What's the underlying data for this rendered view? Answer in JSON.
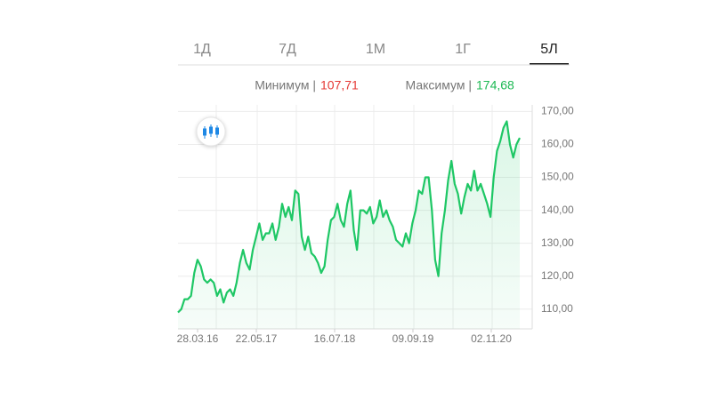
{
  "tabs": [
    "1Д",
    "7Д",
    "1М",
    "1Г",
    "5Л"
  ],
  "selected_tab": 4,
  "min_label": "Минимум |",
  "min_value": "107,71",
  "max_label": "Максимум |",
  "max_value": "174,68",
  "chart_data": {
    "type": "line",
    "color": "#1ec765",
    "grid": true,
    "ylim": [
      104,
      172
    ],
    "yticks": [
      {
        "value": 110,
        "label": "110,00"
      },
      {
        "value": 120,
        "label": "120,00"
      },
      {
        "value": 130,
        "label": "130,00"
      },
      {
        "value": 140,
        "label": "140,00"
      },
      {
        "value": 150,
        "label": "150,00"
      },
      {
        "value": 160,
        "label": "160,00"
      },
      {
        "value": 170,
        "label": "170,00"
      }
    ],
    "xticks": [
      "28.03.16",
      "22.05.17",
      "16.07.18",
      "09.09.19",
      "02.11.20"
    ],
    "values": [
      109,
      110,
      113,
      113,
      114,
      121,
      125,
      123,
      119,
      118,
      119,
      118,
      114,
      116,
      112,
      115,
      116,
      114,
      118,
      124,
      128,
      124,
      122,
      128,
      132,
      136,
      131,
      133,
      133,
      136,
      131,
      135,
      142,
      138,
      141,
      137,
      146,
      145,
      132,
      128,
      132,
      127,
      126,
      124,
      121,
      123,
      131,
      137,
      138,
      142,
      137,
      135,
      142,
      146,
      134,
      128,
      140,
      140,
      139,
      141,
      136,
      138,
      143,
      138,
      140,
      137,
      135,
      131,
      130,
      129,
      133,
      130,
      136,
      140,
      146,
      145,
      150,
      150,
      140,
      125,
      120,
      133,
      140,
      149,
      155,
      148,
      145,
      139,
      144,
      148,
      146,
      152,
      146,
      148,
      145,
      142,
      138,
      150,
      158,
      161,
      165,
      167,
      160,
      156,
      160,
      162
    ]
  }
}
